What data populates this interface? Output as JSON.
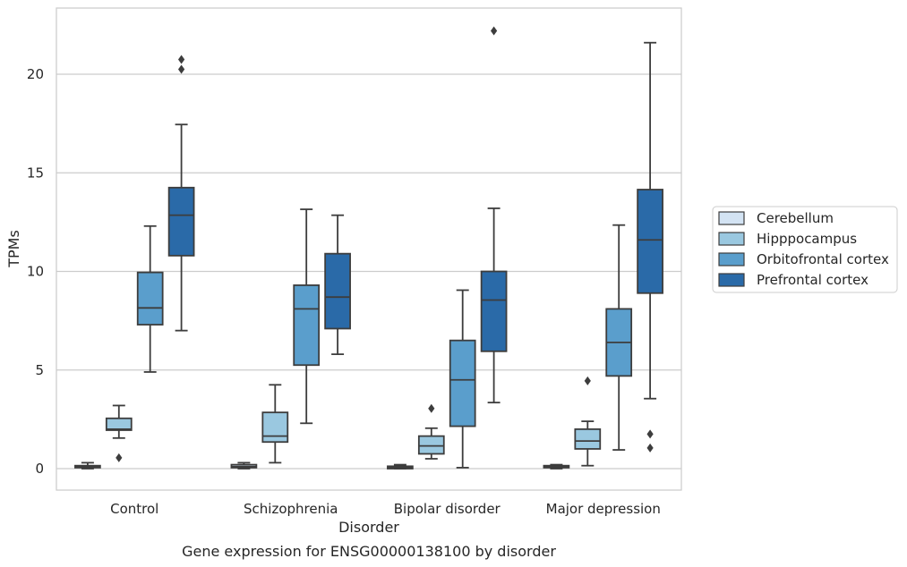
{
  "chart_data": {
    "type": "box",
    "caption": "Gene expression for ENSG00000138100 by disorder",
    "xlabel": "Disorder",
    "ylabel": "TPMs",
    "ylim": [
      -1.1,
      23.4
    ],
    "yticks": [
      0,
      5,
      10,
      15,
      20
    ],
    "grid": "horizontal",
    "legend_position": "right",
    "categories": [
      "Control",
      "Schizophrenia",
      "Bipolar disorder",
      "Major depression"
    ],
    "series": [
      {
        "name": "Cerebellum",
        "color": "#d3e3f3",
        "boxes": [
          {
            "whislo": 0.0,
            "q1": 0.05,
            "med": 0.1,
            "q3": 0.15,
            "whishi": 0.3,
            "fliers": []
          },
          {
            "whislo": 0.0,
            "q1": 0.05,
            "med": 0.1,
            "q3": 0.2,
            "whishi": 0.3,
            "fliers": []
          },
          {
            "whislo": 0.0,
            "q1": 0.0,
            "med": 0.05,
            "q3": 0.12,
            "whishi": 0.2,
            "fliers": []
          },
          {
            "whislo": 0.0,
            "q1": 0.05,
            "med": 0.1,
            "q3": 0.15,
            "whishi": 0.2,
            "fliers": []
          }
        ]
      },
      {
        "name": "Hipppocampus",
        "color": "#9ac8e0",
        "boxes": [
          {
            "whislo": 1.55,
            "q1": 1.95,
            "med": 2.0,
            "q3": 2.55,
            "whishi": 3.2,
            "fliers": [
              0.55
            ]
          },
          {
            "whislo": 0.3,
            "q1": 1.35,
            "med": 1.65,
            "q3": 2.85,
            "whishi": 4.25,
            "fliers": []
          },
          {
            "whislo": 0.5,
            "q1": 0.75,
            "med": 1.15,
            "q3": 1.65,
            "whishi": 2.05,
            "fliers": [
              3.05
            ]
          },
          {
            "whislo": 0.15,
            "q1": 1.0,
            "med": 1.4,
            "q3": 2.0,
            "whishi": 2.4,
            "fliers": [
              4.45
            ]
          }
        ]
      },
      {
        "name": "Orbitofrontal cortex",
        "color": "#5a9ecc",
        "boxes": [
          {
            "whislo": 4.9,
            "q1": 7.3,
            "med": 8.15,
            "q3": 9.95,
            "whishi": 12.3,
            "fliers": []
          },
          {
            "whislo": 2.3,
            "q1": 5.25,
            "med": 8.1,
            "q3": 9.3,
            "whishi": 13.15,
            "fliers": []
          },
          {
            "whislo": 0.05,
            "q1": 2.15,
            "med": 4.5,
            "q3": 6.5,
            "whishi": 9.05,
            "fliers": []
          },
          {
            "whislo": 0.95,
            "q1": 4.7,
            "med": 6.4,
            "q3": 8.1,
            "whishi": 12.35,
            "fliers": []
          }
        ]
      },
      {
        "name": "Prefrontal cortex",
        "color": "#2a6aa8",
        "boxes": [
          {
            "whislo": 7.0,
            "q1": 10.8,
            "med": 12.85,
            "q3": 14.25,
            "whishi": 17.45,
            "fliers": [
              20.25,
              20.75
            ]
          },
          {
            "whislo": 5.8,
            "q1": 7.1,
            "med": 8.7,
            "q3": 10.9,
            "whishi": 12.85,
            "fliers": []
          },
          {
            "whislo": 3.35,
            "q1": 5.95,
            "med": 8.55,
            "q3": 10.0,
            "whishi": 13.2,
            "fliers": [
              22.2
            ]
          },
          {
            "whislo": 3.55,
            "q1": 8.9,
            "med": 11.6,
            "q3": 14.15,
            "whishi": 21.6,
            "fliers": [
              1.05,
              1.75
            ]
          }
        ]
      }
    ]
  }
}
